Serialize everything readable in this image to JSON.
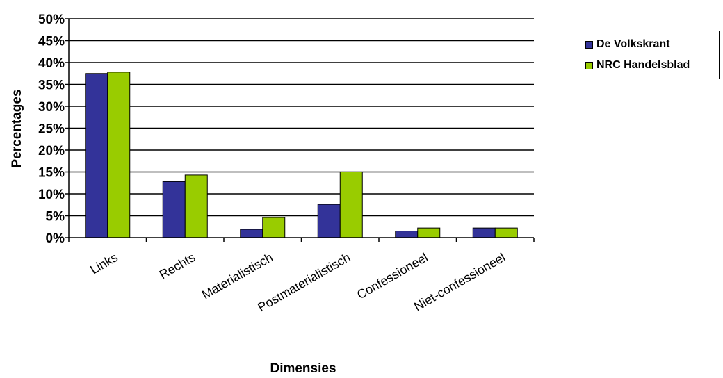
{
  "chart_data": {
    "type": "bar",
    "categories": [
      "Links",
      "Rechts",
      "Materialistisch",
      "Postmaterialistisch",
      "Confessioneel",
      "Niet-confessioneel"
    ],
    "series": [
      {
        "name": "De Volkskrant",
        "values": [
          37.5,
          12.8,
          1.9,
          7.6,
          1.5,
          2.2
        ],
        "color": "#333399"
      },
      {
        "name": "NRC Handelsblad",
        "values": [
          37.8,
          14.3,
          4.6,
          15.0,
          2.2,
          2.2
        ],
        "color": "#99CC00"
      }
    ],
    "xlabel": "Dimensies",
    "ylabel": "Percentages",
    "ylim": [
      0,
      50
    ],
    "yticks": [
      "0%",
      "5%",
      "10%",
      "15%",
      "20%",
      "25%",
      "30%",
      "35%",
      "40%",
      "45%",
      "50%"
    ],
    "grid": true,
    "legend_position": "top-right"
  }
}
